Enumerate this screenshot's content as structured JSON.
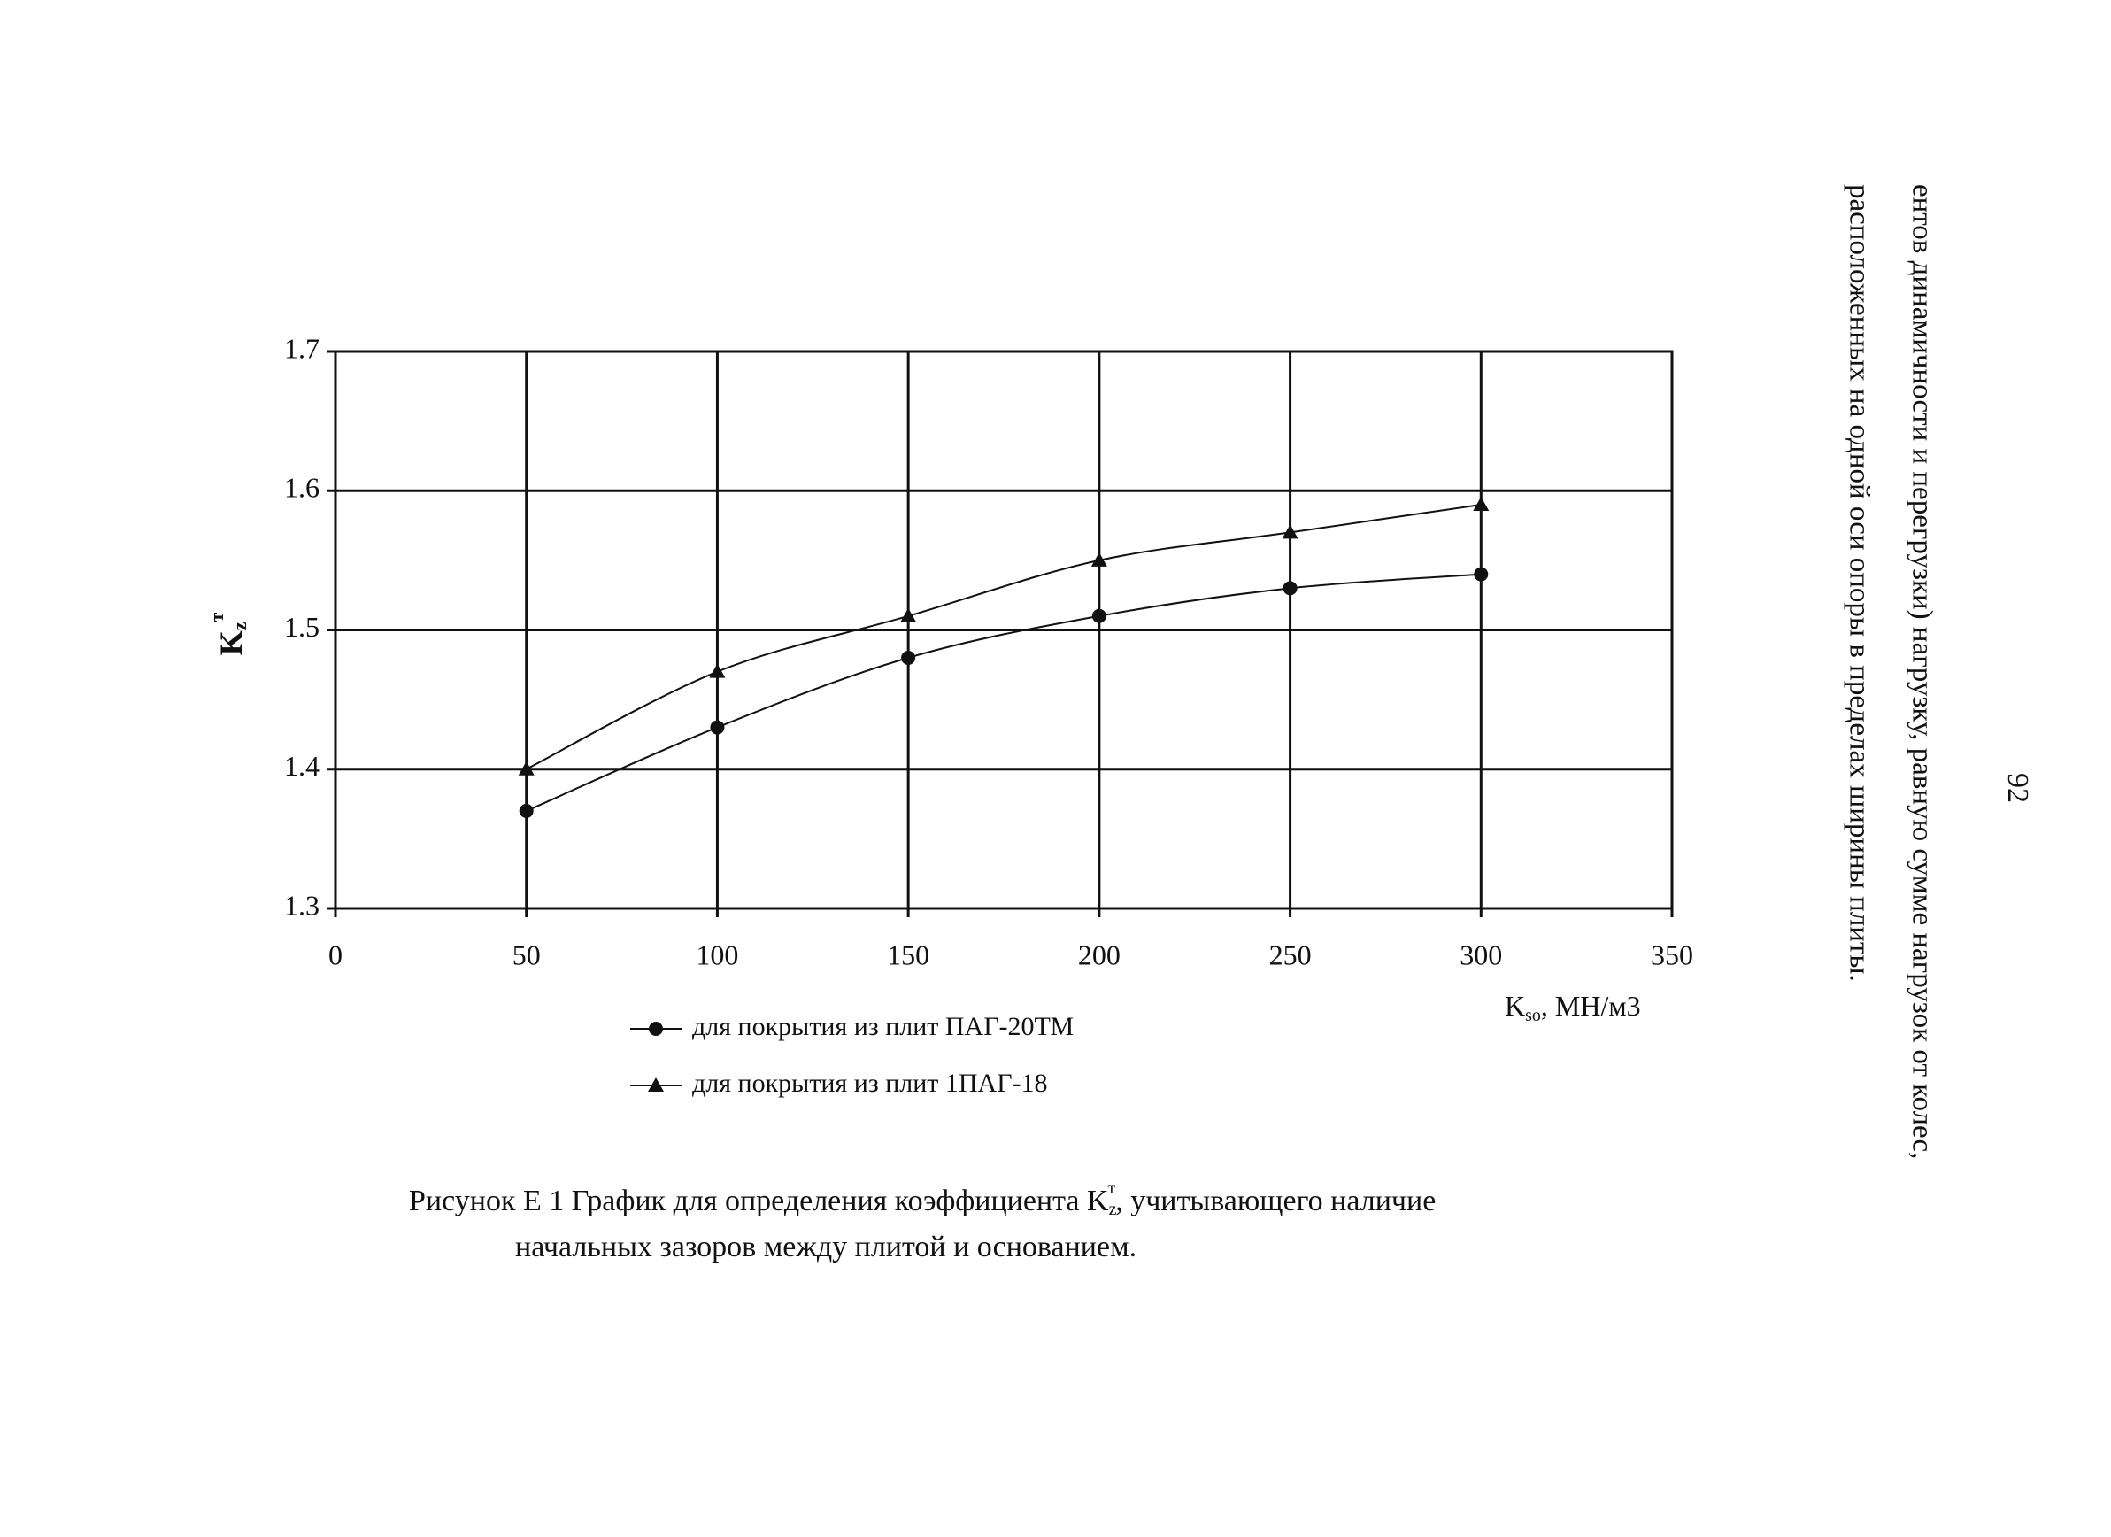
{
  "chart_data": {
    "type": "line",
    "x": [
      50,
      100,
      150,
      200,
      250,
      300
    ],
    "series": [
      {
        "name": "для покрытия из плит ПАГ-20ТМ",
        "color": "#111111",
        "marker": "circle",
        "values": [
          1.37,
          1.43,
          1.48,
          1.51,
          1.53,
          1.54
        ]
      },
      {
        "name": "для покрытия из плит 1ПАГ-18",
        "color": "#111111",
        "marker": "triangle",
        "values": [
          1.4,
          1.47,
          1.51,
          1.55,
          1.57,
          1.59
        ]
      }
    ],
    "xlim": [
      0,
      350
    ],
    "xticks": [
      0,
      50,
      100,
      150,
      200,
      250,
      300,
      350
    ],
    "ylim": [
      1.3,
      1.7
    ],
    "yticks": [
      1.3,
      1.4,
      1.5,
      1.6,
      1.7
    ],
    "grid": true,
    "y_label": {
      "base": "K",
      "sub": "z",
      "sup": "т"
    },
    "x_label": {
      "base": "K",
      "sub": "so",
      "rest": ", МН/м3"
    },
    "caption": {
      "line1_start": "Рисунок Е 1 График для определения коэффициента K",
      "sub": "z",
      "sup": "т",
      "line1_end": ", учитывающего наличие",
      "line2": "начальных зазоров между плитой и основанием."
    }
  },
  "page_number": "92",
  "side_text": [
    "ентов динамичности и перегрузки) нагрузку, равную сумме нагрузок от колес,",
    "расположенных на одной оси опоры в пределах ширины плиты."
  ]
}
